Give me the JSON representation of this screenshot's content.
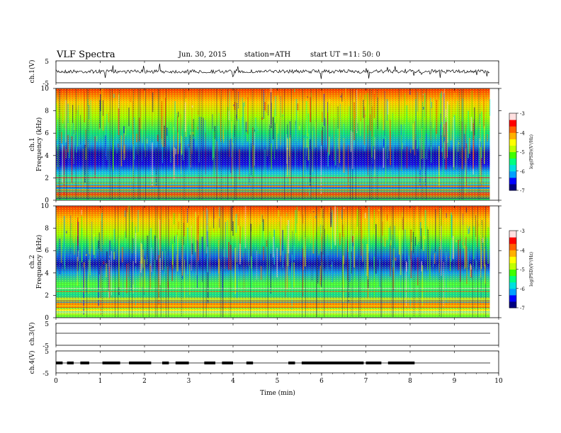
{
  "header": {
    "title": "VLF Spectra",
    "date": "Jun. 30, 2015",
    "station": "station=ATH",
    "start_label": "start  UT =",
    "start_time": "11: 50: 0"
  },
  "panels": {
    "ch1_waveform": {
      "ylabel": "ch.1(V)",
      "ticks": [
        "5",
        "-5"
      ],
      "range": [
        -5,
        5
      ]
    },
    "ch1_spectrogram": {
      "ylabel_channel": "ch.1",
      "ylabel": "Frequency (kHz)",
      "ticks": [
        "10",
        "8",
        "6",
        "4",
        "2",
        "0"
      ]
    },
    "ch2_spectrogram": {
      "ylabel_channel": "ch.2",
      "ylabel": "Frequency (kHz)",
      "ticks": [
        "10",
        "8",
        "6",
        "4",
        "2",
        "0"
      ]
    },
    "ch3_waveform": {
      "ylabel": "ch.3(V)",
      "ticks": [
        "5",
        "-5"
      ],
      "range": [
        -5,
        5
      ]
    },
    "ch4_waveform": {
      "ylabel": "ch.4(V)",
      "ticks": [
        "5",
        "-5"
      ],
      "range": [
        -5,
        5
      ]
    }
  },
  "colorbar": {
    "label": "log(PSD)(V²/Hz)",
    "ticks": [
      "-3",
      "-4",
      "-5",
      "-6",
      "-7"
    ],
    "range": [
      -7,
      -3
    ],
    "colors": [
      "#000080",
      "#0000ff",
      "#00a0ff",
      "#00e0e0",
      "#00ff80",
      "#40ff00",
      "#c0ff00",
      "#ffff00",
      "#ffb000",
      "#ff6000",
      "#ff0000",
      "#ffe0e0"
    ]
  },
  "time_axis": {
    "label": "Time  (min)",
    "ticks": [
      "0",
      "1",
      "2",
      "3",
      "4",
      "5",
      "6",
      "7",
      "8",
      "9",
      "10"
    ],
    "range_min": [
      0,
      10
    ],
    "data_end_min": 9.8
  }
}
